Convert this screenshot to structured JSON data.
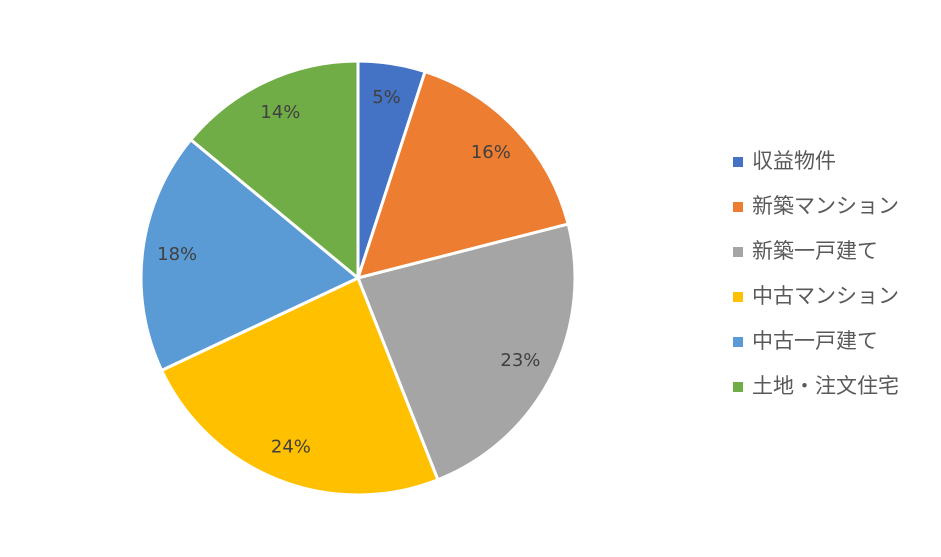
{
  "chart_data": {
    "type": "pie",
    "categories": [
      "収益物件",
      "新築マンション",
      "新築一戸建て",
      "中古マンション",
      "中古一戸建て",
      "土地・注文住宅"
    ],
    "values": [
      5,
      16,
      23,
      24,
      18,
      14
    ],
    "value_labels": [
      "5%",
      "16%",
      "23%",
      "24%",
      "18%",
      "14%"
    ],
    "colors": [
      "#4472c4",
      "#ed7d31",
      "#a5a5a5",
      "#ffc000",
      "#5b9bd5",
      "#70ad47"
    ],
    "legend": "right"
  }
}
